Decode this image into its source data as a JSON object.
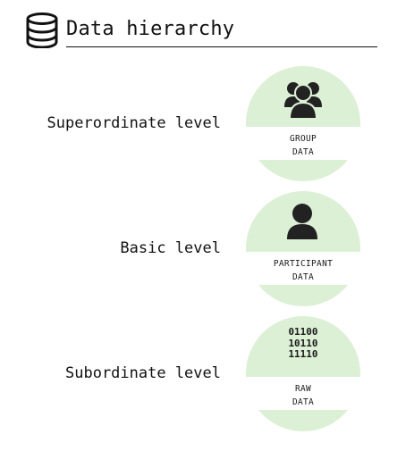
{
  "header": {
    "title": "Data hierarchy",
    "icon": "database-icon"
  },
  "levels": [
    {
      "label": "Superordinate level",
      "caption_line1": "GROUP",
      "caption_line2": "DATA",
      "icon": "group-icon"
    },
    {
      "label": "Basic level",
      "caption_line1": "PARTICIPANT",
      "caption_line2": "DATA",
      "icon": "person-icon"
    },
    {
      "label": "Subordinate level",
      "caption_line1": "RAW",
      "caption_line2": "DATA",
      "icon": "binary-icon",
      "bits": [
        "01100",
        "10110",
        "11110"
      ]
    }
  ],
  "colors": {
    "badge_fill": "#dcf0d6",
    "ink": "#111111"
  }
}
